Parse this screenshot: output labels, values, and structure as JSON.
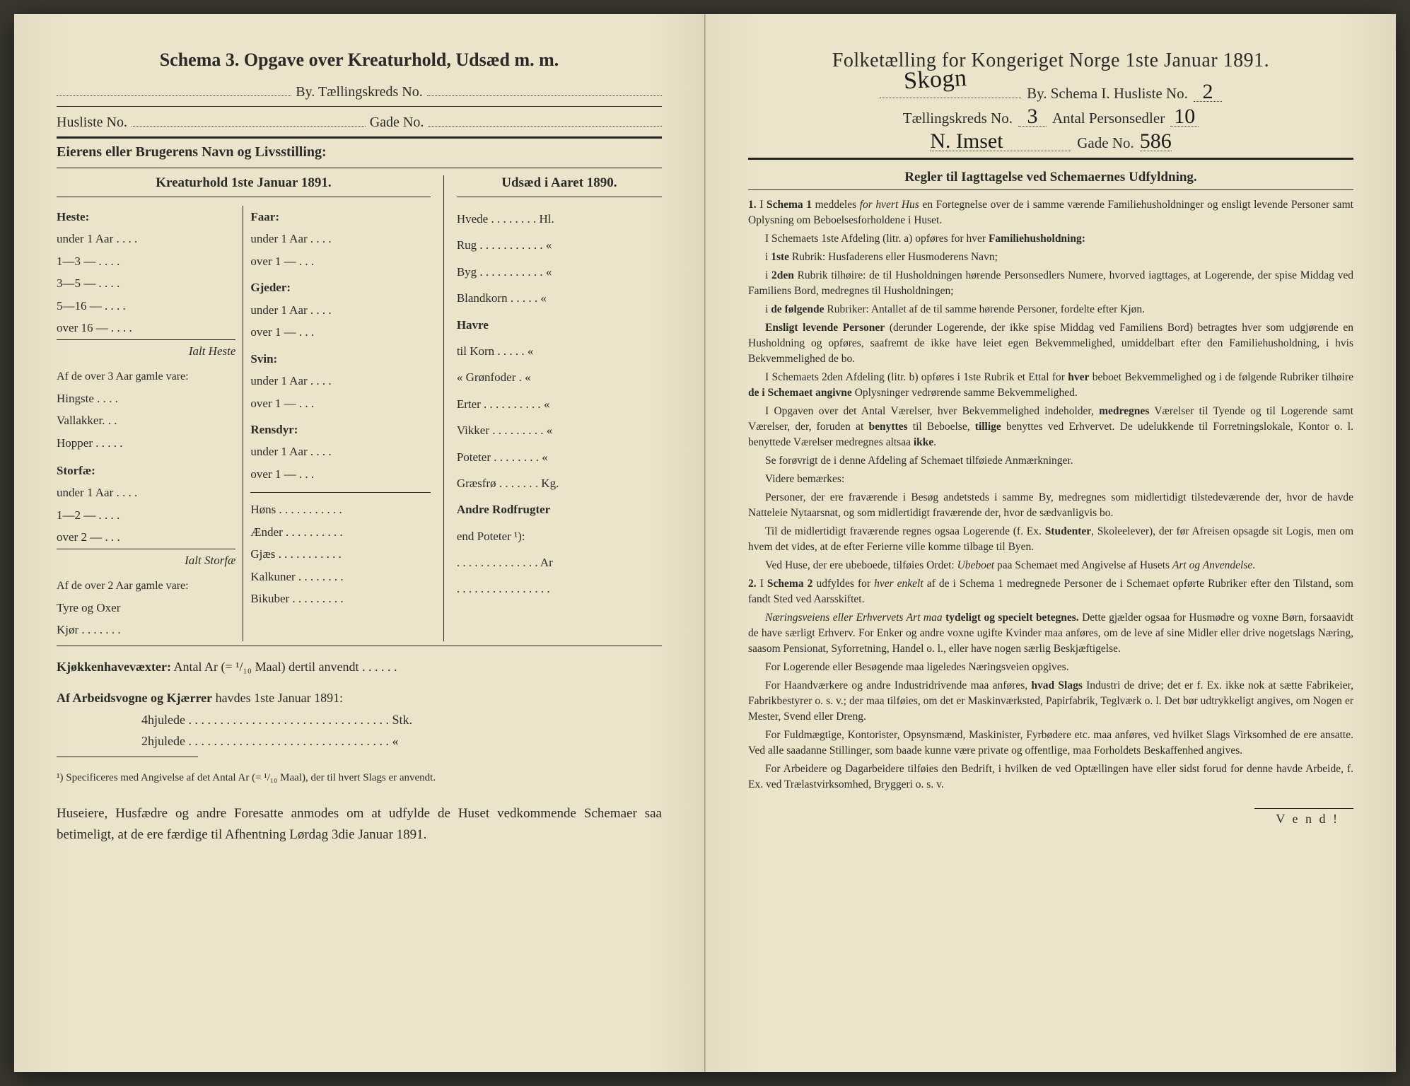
{
  "left": {
    "title": "Schema 3.   Opgave over Kreaturhold, Udsæd m. m.",
    "by_label": "By.  Tællingskreds No.",
    "husliste_label": "Husliste No.",
    "gade_label": "Gade No.",
    "eier_label": "Eierens eller Brugerens Navn og Livsstilling:",
    "kreatur_header": "Kreaturhold 1ste Januar 1891.",
    "udsaed_header": "Udsæd i Aaret 1890.",
    "heste": {
      "label": "Heste:",
      "rows": [
        "under 1 Aar . . . .",
        "1—3  —   . . . .",
        "3—5  —   . . . .",
        "5—16 —   . . . .",
        "over 16 —   . . . ."
      ],
      "ialt": "Ialt Heste",
      "over3_label": "Af de over 3 Aar gamle vare:",
      "over3_rows": [
        "Hingste . . . .",
        "Vallakker. . .",
        "Hopper . . . . ."
      ]
    },
    "storfae": {
      "label": "Storfæ:",
      "rows": [
        "under 1 Aar . . . .",
        "1—2  —   . . . .",
        "over 2  —   . . ."
      ],
      "ialt": "Ialt Storfæ",
      "over2_label": "Af de over 2 Aar gamle vare:",
      "over2_rows": [
        "Tyre og Oxer",
        "Kjør . . . . . . ."
      ]
    },
    "faar": {
      "label": "Faar:",
      "rows": [
        "under 1 Aar . . . .",
        "over 1  —   . . ."
      ]
    },
    "gjeder": {
      "label": "Gjeder:",
      "rows": [
        "under 1 Aar . . . .",
        "over 1  —   . . ."
      ]
    },
    "svin": {
      "label": "Svin:",
      "rows": [
        "under 1 Aar . . . .",
        "over 1  —   . . ."
      ]
    },
    "rensdyr": {
      "label": "Rensdyr:",
      "rows": [
        "under 1 Aar . . . .",
        "over 1  —   . . ."
      ]
    },
    "smaa": [
      "Høns . . . . . . . . . . .",
      "Ænder . . . . . . . . . .",
      "Gjæs . . . . . . . . . . .",
      "Kalkuner . . . . . . . .",
      "Bikuber . . . . . . . . ."
    ],
    "udsaed_rows": [
      "Hvede . . . . . . . . Hl.",
      "Rug . . . . . . . . . . .  «",
      "Byg . . . . . . . . . . .  «",
      "Blandkorn . . . . .  «",
      "Havre",
      "   til Korn . . . . .  «",
      "   «  Grønfoder .  «",
      "Erter . . . . . . . . . .  «",
      "Vikker . . . . . . . . .  «",
      "Poteter . . . . . . . .  «",
      "Græsfrø . . . . . . . Kg.",
      "Andre Rodfrugter",
      "end Poteter ¹):",
      ". . . . . . . . . . . . . . Ar",
      ". . . . . . . . . . . . . . . ."
    ],
    "kjokken_label": "Kjøkkenhavevæxter:",
    "kjokken_text": "Antal Ar (= ¹/₁₀ Maal) dertil anvendt . . . . . .",
    "arbeidsvogne_label": "Af Arbeidsvogne og Kjærrer",
    "arbeidsvogne_text": "havdes 1ste Januar 1891:",
    "hjul4": "4hjulede . . . . . . . . . . . . . . . . . . . . . . . . . . . . . . . . Stk.",
    "hjul2": "2hjulede . . . . . . . . . . . . . . . . . . . . . . . . . . . . . . . .   «",
    "footnote": "¹) Specificeres med Angivelse af det Antal Ar (= ¹/₁₀ Maal), der til hvert Slags er anvendt.",
    "closing": "Huseiere, Husfædre og andre Foresatte anmodes om at udfylde de Huset vedkommende Schemaer saa betimeligt, at de ere færdige til Afhentning Lørdag 3die Januar 1891."
  },
  "right": {
    "title": "Folketælling for Kongeriget Norge 1ste Januar 1891.",
    "hand_sig": "Skogn",
    "by_label_a": "By.   Schema I.   Husliste No.",
    "husliste_no": "2",
    "kreds_label": "Tællingskreds No.",
    "kreds_no": "3",
    "personsedler_label": "Antal Personsedler",
    "personsedler_no": "10",
    "gade_sig": "N. Imset",
    "gade_label": "Gade No.",
    "gade_no": "586",
    "regler_head": "Regler til Iagttagelse ved Schemaernes Udfyldning.",
    "rules": [
      {
        "n": "1.",
        "t": "I <b>Schema 1</b> meddeles <i>for hvert Hus</i> en Fortegnelse over de i samme værende Familiehusholdninger og ensligt levende Personer samt Oplysning om Beboelsesforholdene i Huset."
      },
      {
        "t": "I Schemaets 1ste Afdeling (litr. a) opføres for hver <b>Familiehusholdning:</b>"
      },
      {
        "t": "i <b>1ste</b> Rubrik: Husfaderens eller Husmoderens Navn;"
      },
      {
        "t": "i <b>2den</b> Rubrik tilhøire: de til Husholdningen hørende Personsedlers Numere, hvorved iagttages, at Logerende, der spise Middag ved Familiens Bord, medregnes til Husholdningen;"
      },
      {
        "t": "i <b>de følgende</b> Rubriker: Antallet af de til samme hørende Personer, fordelte efter Kjøn."
      },
      {
        "t": "<b>Ensligt levende Personer</b> (derunder Logerende, der ikke spise Middag ved Familiens Bord) betragtes hver som udgjørende en Husholdning og opføres, saafremt de ikke have leiet egen Bekvemmelighed, umiddelbart efter den Familiehusholdning, i hvis Bekvemmelighed de bo."
      },
      {
        "t": "I Schemaets 2den Afdeling (litr. b) opføres i 1ste Rubrik et Ettal for <b>hver</b> beboet Bekvemmelighed og i de følgende Rubriker tilhøire <b>de i Schemaet angivne</b> Oplysninger vedrørende samme Bekvemmelighed."
      },
      {
        "t": "I Opgaven over det Antal Værelser, hver Bekvemmelighed indeholder, <b>medregnes</b> Værelser til Tyende og til Logerende samt Værelser, der, foruden at <b>benyttes</b> til Beboelse, <b>tillige</b> benyttes ved Erhvervet. De udelukkende til Forretningslokale, Kontor o. l. benyttede Værelser medregnes altsaa <b>ikke</b>."
      },
      {
        "t": "Se forøvrigt de i denne Afdeling af Schemaet tilføiede Anmærkninger."
      },
      {
        "t": "Videre bemærkes:"
      },
      {
        "t": "Personer, der ere fraværende i Besøg andetsteds i samme By, medregnes som midlertidigt tilstedeværende der, hvor de havde Natteleie Nytaarsnat, og som midlertidigt fraværende der, hvor de sædvanligvis bo."
      },
      {
        "t": "Til de midlertidigt fraværende regnes ogsaa Logerende (f. Ex. <b>Studenter</b>, Skoleelever), der før Afreisen opsagde sit Logis, men om hvem det vides, at de efter Ferierne ville komme tilbage til Byen."
      },
      {
        "t": "Ved Huse, der ere ubeboede, tilføies Ordet: <i>Ubeboet</i> paa Schemaet med Angivelse af Husets <i>Art og Anvendelse</i>."
      },
      {
        "n": "2.",
        "t": "I <b>Schema 2</b> udfyldes for <i>hver enkelt</i> af de i Schema 1 medregnede Personer de i Schemaet opførte Rubriker efter den Tilstand, som fandt Sted ved Aarsskiftet."
      },
      {
        "t": "<i>Næringsveiens eller Erhvervets Art maa</i> <b>tydeligt og specielt betegnes.</b> Dette gjælder ogsaa for Husmødre og voxne Børn, forsaavidt de have særligt Erhverv. For Enker og andre voxne ugifte Kvinder maa anføres, om de leve af sine Midler eller drive nogetslags Næring, saasom Pensionat, Syforretning, Handel o. l., eller have nogen særlig Beskjæftigelse."
      },
      {
        "t": "For Logerende eller Besøgende maa ligeledes Næringsveien opgives."
      },
      {
        "t": "For Haandværkere og andre Industridrivende maa anføres, <b>hvad Slags</b> Industri de drive; det er f. Ex. ikke nok at sætte Fabrikeier, Fabrikbestyrer o. s. v.; der maa tilføies, om det er Maskinværksted, Papirfabrik, Teglværk o. l.  Det bør udtrykkeligt angives, om Nogen er Mester, Svend eller Dreng."
      },
      {
        "t": "For Fuldmægtige, Kontorister, Opsynsmænd, Maskinister, Fyrbødere etc. maa anføres, ved hvilket Slags Virksomhed de ere ansatte. Ved alle saadanne Stillinger, som baade kunne være private og offentlige, maa Forholdets Beskaffenhed angives."
      },
      {
        "t": "For Arbeidere og Dagarbeidere tilføies den Bedrift, i hvilken de ved Optællingen have eller sidst forud for denne havde Arbeide, f. Ex. ved Trælastvirksomhed, Bryggeri o. s. v."
      }
    ],
    "vend": "V e n d !"
  }
}
